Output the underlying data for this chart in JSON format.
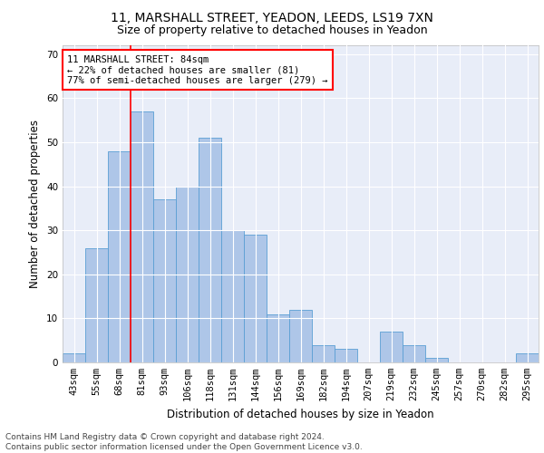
{
  "title_line1": "11, MARSHALL STREET, YEADON, LEEDS, LS19 7XN",
  "title_line2": "Size of property relative to detached houses in Yeadon",
  "xlabel": "Distribution of detached houses by size in Yeadon",
  "ylabel": "Number of detached properties",
  "categories": [
    "43sqm",
    "55sqm",
    "68sqm",
    "81sqm",
    "93sqm",
    "106sqm",
    "118sqm",
    "131sqm",
    "144sqm",
    "156sqm",
    "169sqm",
    "182sqm",
    "194sqm",
    "207sqm",
    "219sqm",
    "232sqm",
    "245sqm",
    "257sqm",
    "270sqm",
    "282sqm",
    "295sqm"
  ],
  "values": [
    2,
    26,
    48,
    57,
    37,
    40,
    51,
    30,
    29,
    11,
    12,
    4,
    3,
    0,
    7,
    4,
    1,
    0,
    0,
    0,
    2
  ],
  "bar_color": "#aec6e8",
  "bar_edge_color": "#5a9fd4",
  "red_line_x": 2.5,
  "annotation_text": "11 MARSHALL STREET: 84sqm\n← 22% of detached houses are smaller (81)\n77% of semi-detached houses are larger (279) →",
  "annotation_box_color": "white",
  "annotation_box_edge": "red",
  "ylim": [
    0,
    72
  ],
  "yticks": [
    0,
    10,
    20,
    30,
    40,
    50,
    60,
    70
  ],
  "background_color": "#e8edf8",
  "footer_text": "Contains HM Land Registry data © Crown copyright and database right 2024.\nContains public sector information licensed under the Open Government Licence v3.0.",
  "title_fontsize": 10,
  "subtitle_fontsize": 9,
  "xlabel_fontsize": 8.5,
  "ylabel_fontsize": 8.5,
  "tick_fontsize": 7.5,
  "annotation_fontsize": 7.5,
  "footer_fontsize": 6.5
}
